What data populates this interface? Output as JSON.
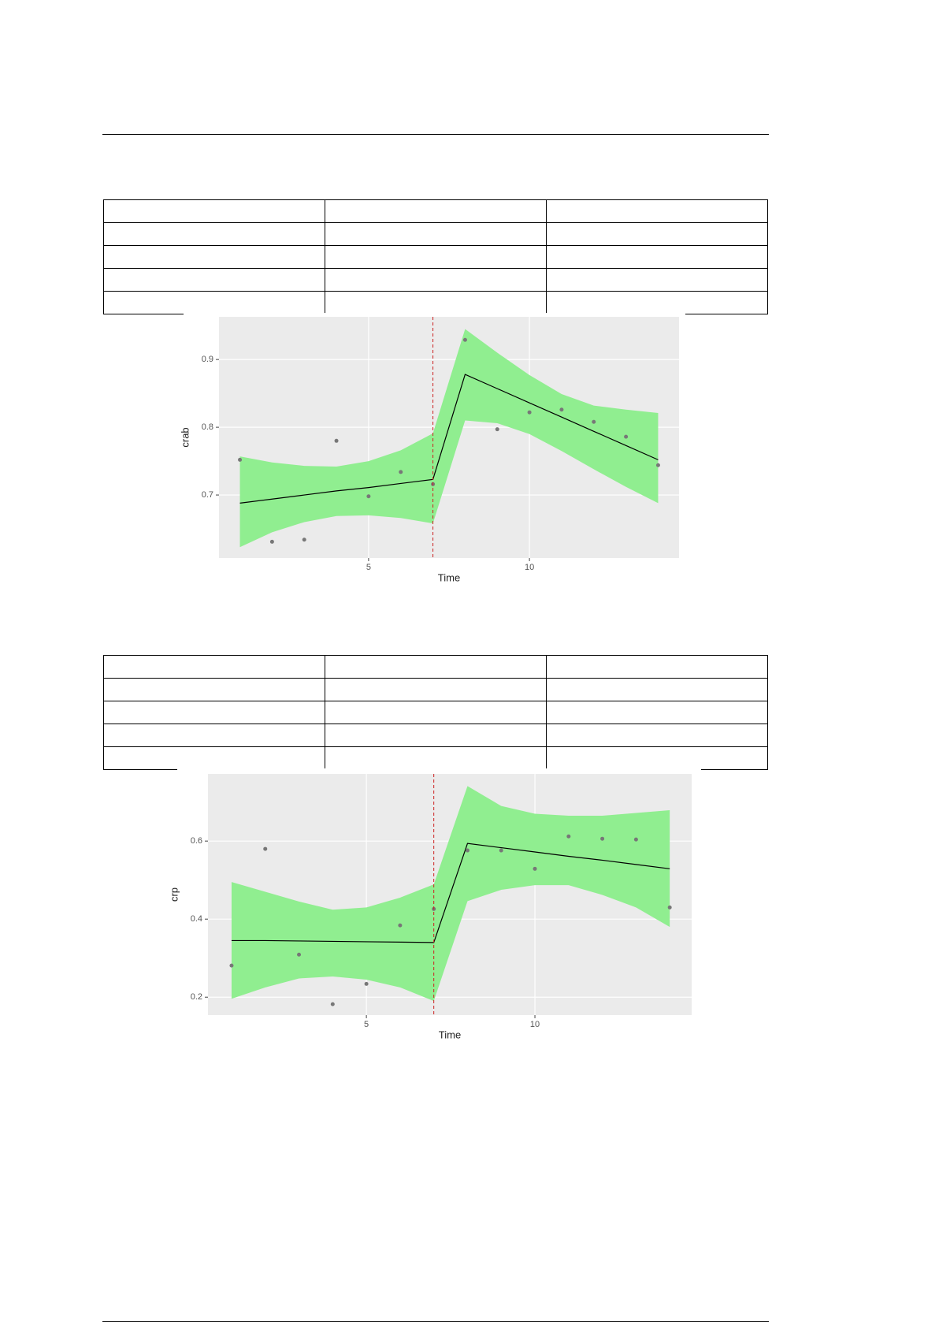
{
  "chart_data": [
    {
      "type": "line",
      "x_label": "Time",
      "y_label": "crab",
      "x": [
        1,
        2,
        3,
        4,
        5,
        6,
        7,
        8,
        9,
        10,
        11,
        12,
        13,
        14
      ],
      "points": [
        0.752,
        0.631,
        0.634,
        0.78,
        0.698,
        0.734,
        0.716,
        0.929,
        0.797,
        0.822,
        0.826,
        0.808,
        0.786,
        0.744
      ],
      "fit": [
        0.688,
        0.694,
        0.7,
        0.706,
        0.711,
        0.717,
        0.723,
        0.878,
        0.857,
        0.836,
        0.815,
        0.794,
        0.773,
        0.752
      ],
      "upper": [
        0.757,
        0.748,
        0.743,
        0.742,
        0.75,
        0.766,
        0.791,
        0.945,
        0.91,
        0.877,
        0.849,
        0.832,
        0.826,
        0.821
      ],
      "lower": [
        0.623,
        0.645,
        0.66,
        0.669,
        0.67,
        0.666,
        0.658,
        0.81,
        0.806,
        0.79,
        0.765,
        0.738,
        0.712,
        0.688
      ],
      "vline": 7,
      "point_color": "#777777",
      "line_color": "#000000",
      "band_color": "#90ee90",
      "vline_color": "#cc2222",
      "xlim": [
        0.35,
        14.65
      ],
      "ylim": [
        0.607,
        0.963
      ],
      "xticks": [
        5,
        10
      ],
      "yticks": [
        0.7,
        0.8,
        0.9
      ],
      "grid": true
    },
    {
      "type": "line",
      "x_label": "Time",
      "y_label": "crp",
      "x": [
        1,
        2,
        3,
        4,
        5,
        6,
        7,
        8,
        9,
        10,
        11,
        12,
        13,
        14
      ],
      "points": [
        0.281,
        0.58,
        0.309,
        0.182,
        0.234,
        0.384,
        0.426,
        0.576,
        0.576,
        0.529,
        0.612,
        0.606,
        0.604,
        0.43
      ],
      "fit": [
        0.345,
        0.345,
        0.344,
        0.343,
        0.342,
        0.341,
        0.34,
        0.594,
        0.583,
        0.572,
        0.561,
        0.551,
        0.54,
        0.529
      ],
      "upper": [
        0.495,
        0.47,
        0.445,
        0.424,
        0.43,
        0.455,
        0.489,
        0.741,
        0.69,
        0.67,
        0.665,
        0.665,
        0.672,
        0.679
      ],
      "lower": [
        0.196,
        0.225,
        0.248,
        0.253,
        0.245,
        0.225,
        0.19,
        0.446,
        0.475,
        0.487,
        0.487,
        0.462,
        0.43,
        0.38
      ],
      "vline": 7,
      "point_color": "#777777",
      "line_color": "#000000",
      "band_color": "#90ee90",
      "vline_color": "#cc2222",
      "xlim": [
        0.3,
        14.65
      ],
      "ylim": [
        0.154,
        0.772
      ],
      "xticks": [
        5,
        10
      ],
      "yticks": [
        0.2,
        0.4,
        0.6
      ],
      "grid": true
    }
  ]
}
